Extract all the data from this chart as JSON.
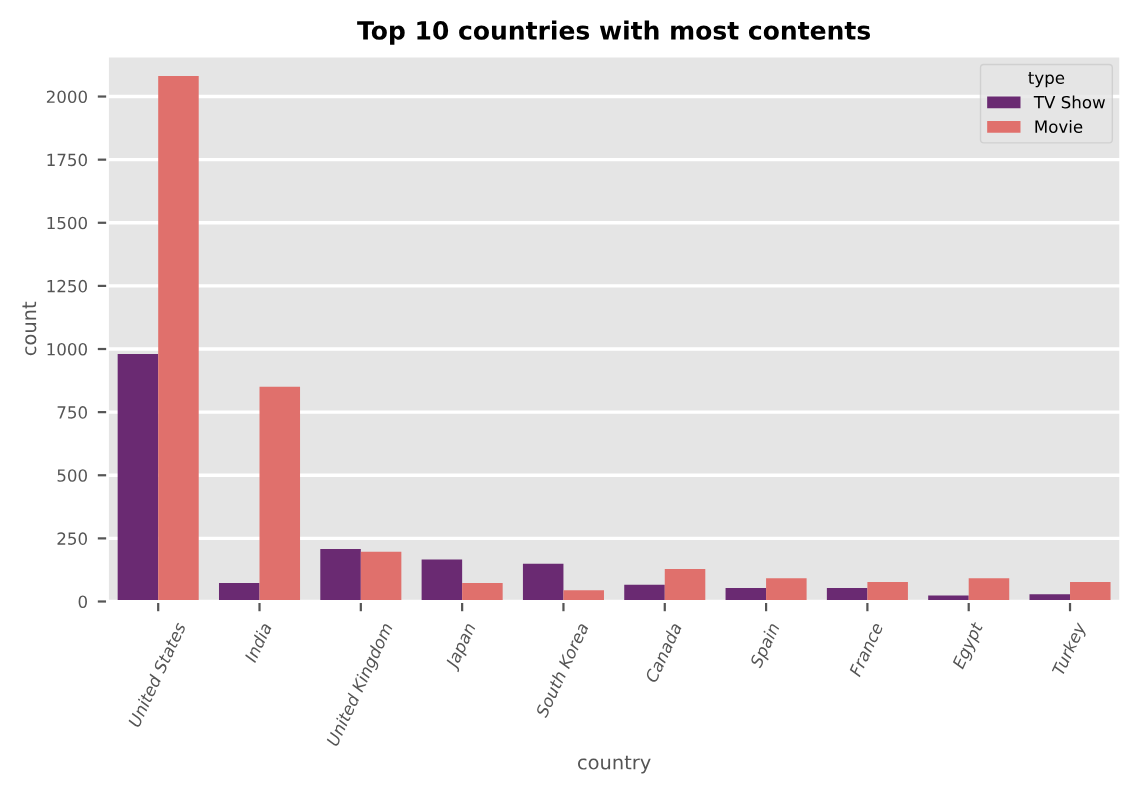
{
  "chart_data": {
    "type": "bar",
    "title": "Top 10 countries with most contents",
    "xlabel": "country",
    "ylabel": "count",
    "legend_title": "type",
    "categories": [
      "United States",
      "India",
      "United Kingdom",
      "Japan",
      "South Korea",
      "Canada",
      "Spain",
      "France",
      "Egypt",
      "Turkey"
    ],
    "series": [
      {
        "name": "TV Show",
        "color": "#6a2a72",
        "values": [
          980,
          73,
          208,
          166,
          150,
          66,
          53,
          53,
          24,
          29
        ]
      },
      {
        "name": "Movie",
        "color": "#e0706c",
        "values": [
          2081,
          851,
          197,
          73,
          45,
          129,
          92,
          77,
          92,
          77
        ]
      }
    ],
    "ylim": [
      0,
      2160
    ],
    "yticks": [
      0,
      250,
      500,
      750,
      1000,
      1250,
      1500,
      1750,
      2000
    ],
    "grid": "y",
    "legend": "top right"
  }
}
